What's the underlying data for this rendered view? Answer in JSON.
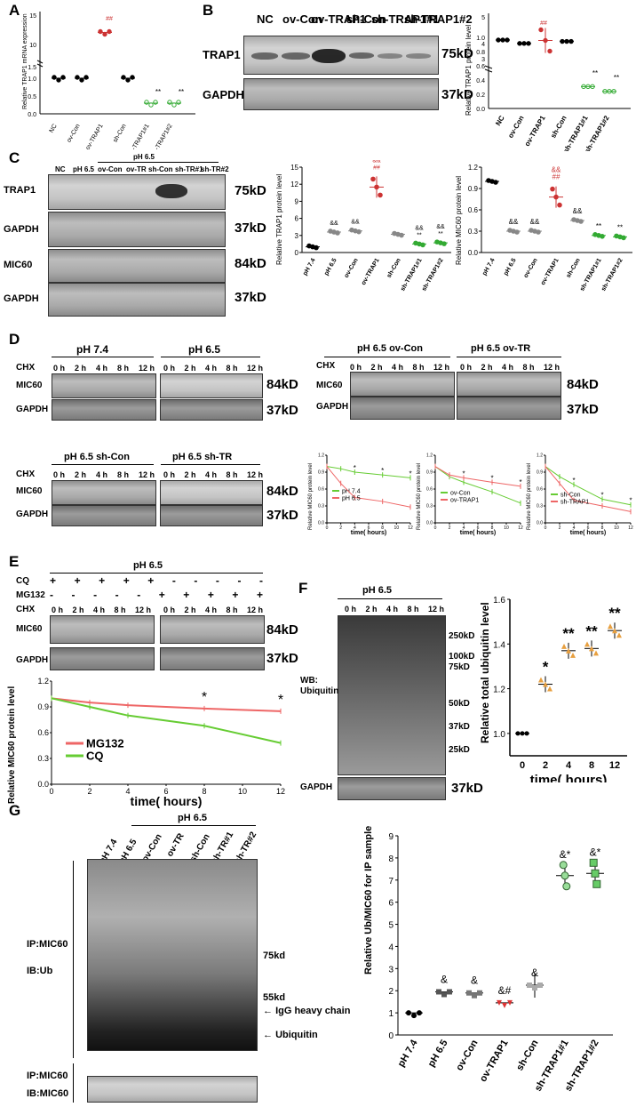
{
  "panels": {
    "A": "A",
    "B": "B",
    "C": "C",
    "D": "D",
    "E": "E",
    "F": "F",
    "G": "G"
  },
  "markers": {
    "trap1": "TRAP1",
    "gapdh": "GAPDH",
    "mic60": "MIC60",
    "cq": "CQ",
    "mg132": "MG132",
    "chx": "CHX",
    "kd75": "75kD",
    "kd37": "37kD",
    "kd84": "84kD",
    "kd250": "250kD",
    "kd100": "100kD",
    "kd50": "50kD",
    "kd25": "25kD",
    "kd75s": "75kd",
    "kd55s": "55kd"
  },
  "groups": {
    "nc": "NC",
    "ovcon": "ov-Con",
    "ovtrap1": "ov-TRAP1",
    "shcon": "sh-Con",
    "sh1": "sh-TRAP1#1",
    "sh2": "sh-TRAP1#2",
    "ph74": "pH 7.4",
    "ph65": "pH 6.5",
    "ovtr": "ov-TR",
    "shtr1": "sh-TR#1",
    "shtr2": "sh-TR#2",
    "shtr": "sh-TR"
  },
  "timepoints": [
    "0 h",
    "2 h",
    "4 h",
    "8 h",
    "12 h"
  ],
  "subtitles": {
    "d1": "pH 7.4",
    "d2": "pH 6.5",
    "d3": "pH 6.5  ov-Con",
    "d4": "pH 6.5  ov-TR",
    "d5": "pH 6.5  sh-Con",
    "d6": "pH 6.5  sh-TR",
    "e": "pH 6.5",
    "f": "pH 6.5",
    "g": "pH 6.5"
  },
  "signs": {
    "plus": "+",
    "minus": "-"
  },
  "labels": {
    "wb": "WB:",
    "ubiquitin": "Ubiquitin",
    "ipmic60": "IP:MIC60",
    "ibub": "IB:Ub",
    "ibmic60": "IB:MIC60",
    "igg": "IgG heavy chain",
    "ubarrow": "Ubiquitin"
  },
  "chart_data": [
    {
      "id": "A",
      "type": "scatter",
      "ylabel": "Relative TRAP1 mRNA expression",
      "categories": [
        "NC",
        "ov-Con",
        "ov-TRAP1",
        "sh-Con",
        "sh-TRAP1#1",
        "sh-TRAP1#2"
      ],
      "values": [
        1.0,
        1.0,
        12.5,
        1.0,
        0.3,
        0.3
      ],
      "yticks": [
        "0.0",
        "0.5",
        "1.0",
        "1.5",
        "10",
        "15"
      ],
      "annotations": [
        "",
        "",
        "##",
        "",
        "**",
        "**"
      ]
    },
    {
      "id": "B",
      "type": "scatter",
      "ylabel": "Relative TRAP1 protein level",
      "categories": [
        "NC",
        "ov-Con",
        "ov-TRAP1",
        "sh-Con",
        "sh-TRAP1#1",
        "sh-TRAP1#2"
      ],
      "values": [
        1.0,
        0.95,
        4.0,
        0.98,
        0.32,
        0.25
      ],
      "yticks": [
        "0.0",
        "0.2",
        "0.4",
        "0.6",
        "0.8",
        "1.0",
        "3",
        "4",
        "5"
      ],
      "annotations": [
        "",
        "",
        "##",
        "",
        "**",
        "**"
      ]
    },
    {
      "id": "C1",
      "type": "scatter",
      "ylabel": "Relative TRAP1 protein level",
      "categories": [
        "pH 7.4",
        "pH 6.5",
        "ov-Con",
        "ov-TRAP1",
        "sh-Con",
        "sh-TRAP1#1",
        "sh-TRAP1#2"
      ],
      "values": [
        1.0,
        3.6,
        3.8,
        11.5,
        3.2,
        1.5,
        1.7
      ],
      "ylim": [
        0,
        15
      ],
      "yticks": [
        "0",
        "3",
        "6",
        "9",
        "12",
        "15"
      ],
      "annotations": [
        "",
        "&&",
        "&&",
        "&&|##",
        "",
        "&&|**",
        "&&|**"
      ]
    },
    {
      "id": "C2",
      "type": "scatter",
      "ylabel": "Relative MIC60 protein level",
      "categories": [
        "pH 7.4",
        "pH 6.5",
        "ov-Con",
        "ov-TRAP1",
        "sh-Con",
        "sh-TRAP1#1",
        "sh-TRAP1#2"
      ],
      "values": [
        1.0,
        0.3,
        0.3,
        0.78,
        0.45,
        0.24,
        0.22
      ],
      "ylim": [
        0,
        1.2
      ],
      "yticks": [
        "0.0",
        "0.3",
        "0.6",
        "0.9",
        "1.2"
      ],
      "annotations": [
        "",
        "&&",
        "&&",
        "&&|##",
        "&&",
        "**",
        "**"
      ]
    },
    {
      "id": "D1",
      "type": "line",
      "ylabel": "Relative MIC60 protein level",
      "xlabel": "time( hours)",
      "x": [
        0,
        2,
        4,
        8,
        12
      ],
      "xticks": [
        "0",
        "2",
        "4",
        "6",
        "8",
        "10",
        "12"
      ],
      "yticks": [
        "0.0",
        "0.3",
        "0.6",
        "0.9",
        "1.2"
      ],
      "series": [
        {
          "name": "pH 7.4",
          "values": [
            1.0,
            0.96,
            0.9,
            0.85,
            0.8
          ]
        },
        {
          "name": "pH 6.5",
          "values": [
            1.0,
            0.7,
            0.45,
            0.38,
            0.28
          ]
        }
      ],
      "annotations": [
        "*",
        "*",
        "*"
      ]
    },
    {
      "id": "D2",
      "type": "line",
      "ylabel": "Relative MIC60 protein level",
      "xlabel": "time( hours)",
      "x": [
        0,
        2,
        4,
        8,
        12
      ],
      "xticks": [
        "0",
        "2",
        "4",
        "6",
        "8",
        "10",
        "12"
      ],
      "yticks": [
        "0.0",
        "0.3",
        "0.6",
        "0.9",
        "1.2"
      ],
      "series": [
        {
          "name": "ov-Con",
          "values": [
            1.0,
            0.82,
            0.72,
            0.55,
            0.35
          ]
        },
        {
          "name": "ov-TRAP1",
          "values": [
            1.0,
            0.85,
            0.8,
            0.72,
            0.65
          ]
        }
      ],
      "annotations": [
        "*",
        "*",
        "*"
      ]
    },
    {
      "id": "D3",
      "type": "line",
      "ylabel": "Relative MIC60 protein level",
      "xlabel": "time( hours)",
      "x": [
        0,
        2,
        4,
        8,
        12
      ],
      "xticks": [
        "0",
        "2",
        "4",
        "6",
        "8",
        "10",
        "12"
      ],
      "yticks": [
        "0.0",
        "0.3",
        "0.6",
        "0.9",
        "1.2"
      ],
      "series": [
        {
          "name": "sh-Con",
          "values": [
            1.0,
            0.82,
            0.68,
            0.42,
            0.32
          ]
        },
        {
          "name": "sh-TRAP1",
          "values": [
            1.0,
            0.7,
            0.4,
            0.3,
            0.2
          ]
        }
      ],
      "annotations": [
        "*",
        "*",
        "*"
      ]
    },
    {
      "id": "E",
      "type": "line",
      "ylabel": "Relative MIC60 protein level",
      "xlabel": "time( hours)",
      "x": [
        0,
        2,
        4,
        8,
        12
      ],
      "xticks": [
        "0",
        "2",
        "4",
        "6",
        "8",
        "10",
        "12"
      ],
      "ylim": [
        0,
        1.2
      ],
      "yticks": [
        "0.0",
        "0.3",
        "0.6",
        "0.9",
        "1.2"
      ],
      "series": [
        {
          "name": "MG132",
          "values": [
            1.0,
            0.95,
            0.92,
            0.88,
            0.85
          ]
        },
        {
          "name": "CQ",
          "values": [
            1.0,
            0.9,
            0.8,
            0.68,
            0.48
          ]
        }
      ],
      "annotations": [
        "*",
        "*"
      ]
    },
    {
      "id": "F",
      "type": "scatter",
      "ylabel": "Relative total ubiquitin level",
      "xlabel": "time( hours)",
      "categories": [
        "0",
        "2",
        "4",
        "8",
        "12"
      ],
      "values": [
        1.0,
        1.22,
        1.37,
        1.38,
        1.46
      ],
      "ylim": [
        0.9,
        1.6
      ],
      "yticks": [
        "1.0",
        "1.2",
        "1.4",
        "1.6"
      ],
      "annotations": [
        "",
        "*",
        "**",
        "**",
        "**"
      ]
    },
    {
      "id": "G",
      "type": "scatter",
      "ylabel": "Relative Ub/MIC60 for IP sample",
      "categories": [
        "pH 7.4",
        "pH 6.5",
        "ov-Con",
        "ov-TRAP1",
        "sh-Con",
        "sh-TRAP1#1",
        "sh-TRAP1#2"
      ],
      "values": [
        1.0,
        1.95,
        1.9,
        1.45,
        2.25,
        7.2,
        7.3
      ],
      "yticks": [
        "0",
        "1",
        "2",
        "3",
        "4",
        "5",
        "6",
        "7",
        "8",
        "9"
      ],
      "annotations": [
        "",
        "&",
        "&",
        "&#",
        "&",
        "&*",
        "&*"
      ]
    }
  ]
}
